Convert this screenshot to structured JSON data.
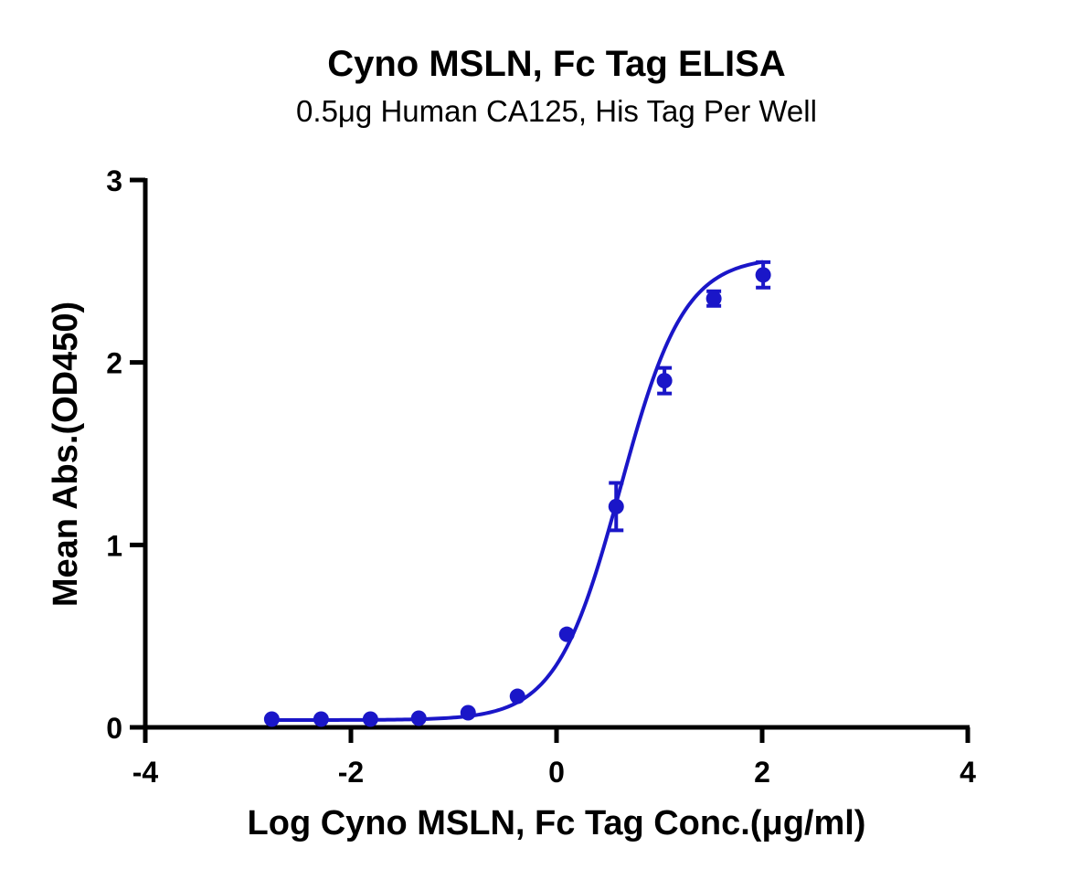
{
  "chart_data": {
    "type": "scatter",
    "title": "Cyno MSLN, Fc Tag ELISA",
    "subtitle": "0.5μg Human CA125, His Tag Per Well",
    "xlabel": "Log Cyno MSLN, Fc Tag Conc.(μg/ml)",
    "ylabel": "Mean Abs.(OD450)",
    "xlim": [
      -4,
      4
    ],
    "ylim": [
      0,
      3
    ],
    "xticks": [
      -4,
      -2,
      0,
      2,
      4
    ],
    "xtick_labels": [
      "-4",
      "-2",
      "0",
      "2",
      "4"
    ],
    "yticks": [
      0,
      1,
      2,
      3
    ],
    "ytick_labels": [
      "0",
      "1",
      "2",
      "3"
    ],
    "grid": false,
    "series": [
      {
        "color": "#1a16c8",
        "x": [
          -2.77,
          -2.29,
          -1.81,
          -1.34,
          -0.86,
          -0.38,
          0.1,
          0.58,
          1.05,
          1.53,
          2.01
        ],
        "y": [
          0.045,
          0.045,
          0.045,
          0.05,
          0.08,
          0.17,
          0.51,
          1.21,
          1.9,
          2.35,
          2.48
        ],
        "error": [
          0.0,
          0.0,
          0.0,
          0.0,
          0.0,
          0.0,
          0.0,
          0.13,
          0.07,
          0.04,
          0.07
        ],
        "fit": {
          "model": "4PL",
          "bottom": 0.04,
          "top": 2.58,
          "log_ec50": 0.62,
          "hill": 1.4,
          "x_range": [
            -2.77,
            2.01
          ]
        }
      }
    ]
  }
}
